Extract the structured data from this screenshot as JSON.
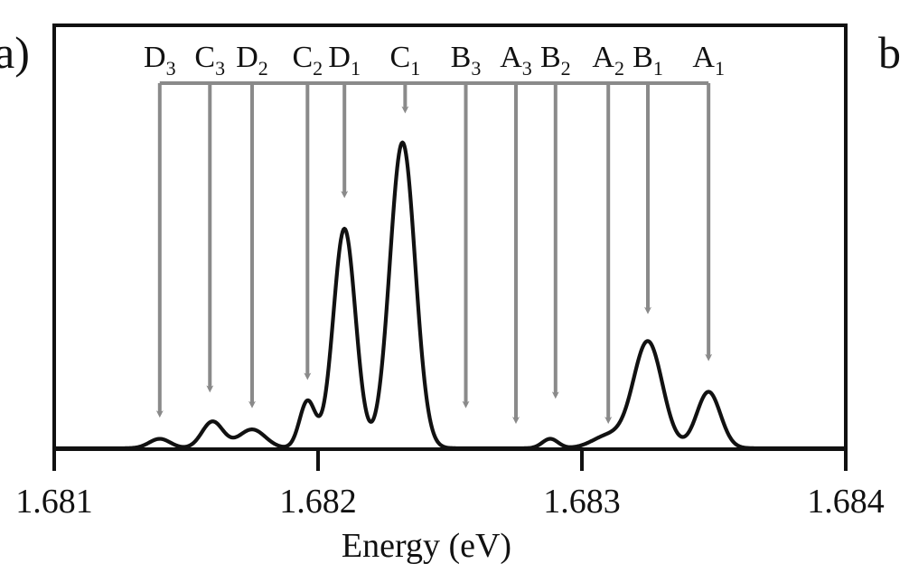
{
  "chart_data": {
    "type": "line",
    "panel_label": "a)",
    "next_panel_label": "b",
    "xlabel": "Energy (eV)",
    "ylabel": "",
    "xlim": [
      1.681,
      1.684
    ],
    "ylim": [
      0,
      1.0
    ],
    "x_ticks": [
      1.681,
      1.682,
      1.683,
      1.684
    ],
    "x_tick_labels": [
      "1.681",
      "1.682",
      "1.683",
      "1.684"
    ],
    "grid": false,
    "colors": {
      "spectrum": "#111111",
      "markers": "#8a8a8a",
      "frame": "#111111"
    },
    "baseline": 0.003,
    "peaks": [
      {
        "center": 1.6814,
        "amp": 0.03,
        "width": 4e-05
      },
      {
        "center": 1.6816,
        "amp": 0.085,
        "width": 4e-05
      },
      {
        "center": 1.68175,
        "amp": 0.06,
        "width": 5e-05
      },
      {
        "center": 1.68196,
        "amp": 0.15,
        "width": 3e-05
      },
      {
        "center": 1.6821,
        "amp": 0.7,
        "width": 4.2e-05
      },
      {
        "center": 1.68232,
        "amp": 0.975,
        "width": 4.8e-05
      },
      {
        "center": 1.68288,
        "amp": 0.03,
        "width": 3e-05
      },
      {
        "center": 1.6831,
        "amp": 0.04,
        "width": 6e-05
      },
      {
        "center": 1.68325,
        "amp": 0.34,
        "width": 5.5e-05
      },
      {
        "center": 1.68348,
        "amp": 0.18,
        "width": 4.5e-05
      }
    ],
    "markers": [
      {
        "label": "D",
        "sub": "3",
        "x": 1.6814,
        "tip": 0.1
      },
      {
        "label": "C",
        "sub": "3",
        "x": 1.68159,
        "tip": 0.18
      },
      {
        "label": "D",
        "sub": "2",
        "x": 1.68175,
        "tip": 0.13
      },
      {
        "label": "C",
        "sub": "2",
        "x": 1.68196,
        "tip": 0.22
      },
      {
        "label": "D",
        "sub": "1",
        "x": 1.6821,
        "tip": 0.8
      },
      {
        "label": "C",
        "sub": "1",
        "x": 1.68233,
        "tip": 1.07
      },
      {
        "label": "B",
        "sub": "3",
        "x": 1.68256,
        "tip": 0.13
      },
      {
        "label": "A",
        "sub": "3",
        "x": 1.68275,
        "tip": 0.08
      },
      {
        "label": "B",
        "sub": "2",
        "x": 1.6829,
        "tip": 0.16
      },
      {
        "label": "A",
        "sub": "2",
        "x": 1.6831,
        "tip": 0.08
      },
      {
        "label": "B",
        "sub": "1",
        "x": 1.68325,
        "tip": 0.43
      },
      {
        "label": "A",
        "sub": "1",
        "x": 1.68348,
        "tip": 0.28
      }
    ]
  }
}
